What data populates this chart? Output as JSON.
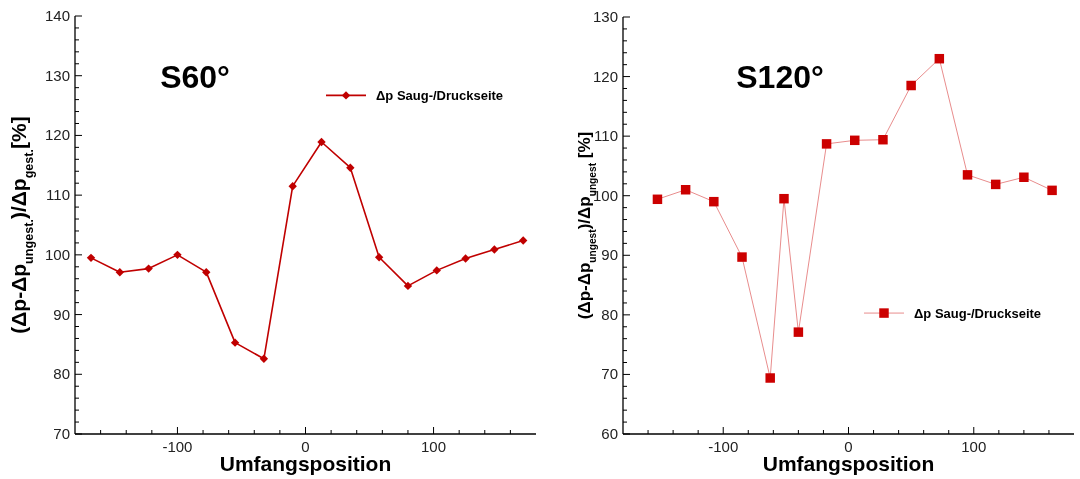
{
  "chart_data": [
    {
      "type": "line",
      "title": "S60°",
      "xlabel": "Umfangsposition",
      "ylabel": "(Δp-Δp$_{ungest.}$)/Δp$_{gest.}$[%]",
      "x": [
        -167.5,
        -145,
        -122.5,
        -100,
        -77.5,
        -55,
        -32.5,
        -10,
        12.5,
        35,
        57.5,
        80,
        102.5,
        125,
        147.5,
        170
      ],
      "series": [
        {
          "name": "Δp Saug-/Druckseite",
          "color": "#c00000",
          "values": [
            99.5,
            97.1,
            97.7,
            100,
            97.1,
            85.3,
            82.6,
            111.5,
            118.9,
            114.6,
            99.6,
            94.8,
            97.4,
            99.4,
            100.9,
            102.4
          ]
        }
      ],
      "xlim": [
        -180,
        180
      ],
      "ylim": [
        70,
        140
      ],
      "xticks": [
        {
          "value": -160,
          "label": null
        },
        {
          "value": -140,
          "label": null
        },
        {
          "value": -120,
          "label": null
        },
        -100,
        {
          "value": -80,
          "label": null
        },
        {
          "value": -60,
          "label": null
        },
        {
          "value": -40,
          "label": null
        },
        {
          "value": -20,
          "label": null
        },
        0,
        {
          "value": 20,
          "label": null
        },
        {
          "value": 40,
          "label": null
        },
        {
          "value": 60,
          "label": null
        },
        {
          "value": 80,
          "label": null
        },
        100,
        {
          "value": 120,
          "label": null
        },
        {
          "value": 140,
          "label": null
        },
        {
          "value": 160,
          "label": null
        }
      ],
      "yticks": [
        70,
        80,
        90,
        100,
        110,
        120,
        130,
        140
      ],
      "marker": "diamond",
      "legend": "top right",
      "grid": false
    },
    {
      "type": "line",
      "title": "S120°",
      "xlabel": "Umfangsposition",
      "ylabel": "(Δp-Δp$_{ungest}$)/Δp$_{ungest}$ [%]",
      "x": [
        -152.5,
        -130,
        -107.5,
        -85,
        -62.5,
        -51.5,
        -40,
        -17.5,
        5,
        27.5,
        50,
        72.5,
        95,
        117.5,
        140,
        162.5
      ],
      "series": [
        {
          "name": "Δp Saug-/Druckseite",
          "color": "#cc0000",
          "values": [
            99.4,
            101,
            99,
            89.7,
            69.4,
            99.5,
            77.1,
            108.7,
            109.3,
            109.4,
            118.5,
            123,
            103.5,
            101.9,
            103.1,
            100.9
          ]
        }
      ],
      "xlim": [
        -180,
        180
      ],
      "ylim": [
        60,
        130
      ],
      "xticks": [
        {
          "value": -160,
          "label": null
        },
        {
          "value": -140,
          "label": null
        },
        {
          "value": -120,
          "label": null
        },
        -100,
        {
          "value": -80,
          "label": null
        },
        {
          "value": -60,
          "label": null
        },
        {
          "value": -40,
          "label": null
        },
        {
          "value": -20,
          "label": null
        },
        0,
        {
          "value": 20,
          "label": null
        },
        {
          "value": 40,
          "label": null
        },
        {
          "value": 60,
          "label": null
        },
        {
          "value": 80,
          "label": null
        },
        100,
        {
          "value": 120,
          "label": null
        },
        {
          "value": 140,
          "label": null
        },
        {
          "value": 160,
          "label": null
        }
      ],
      "yticks": [
        60,
        70,
        80,
        90,
        100,
        110,
        120,
        130
      ],
      "marker": "square",
      "legend": "right",
      "grid": false
    }
  ]
}
